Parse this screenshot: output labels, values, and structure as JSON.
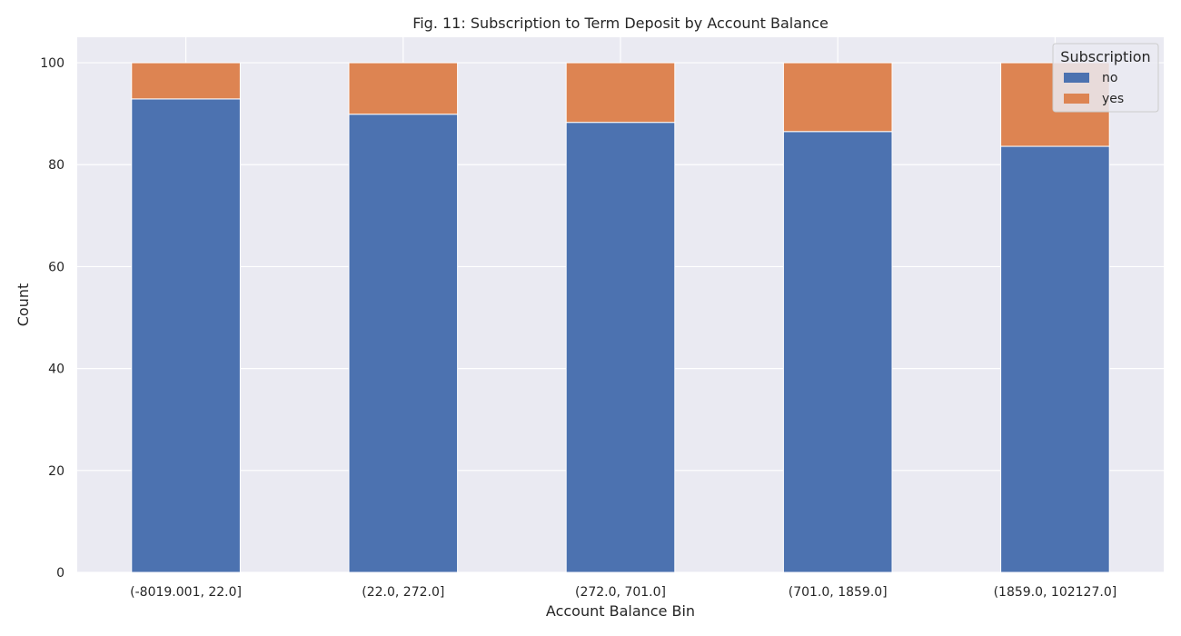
{
  "chart_data": {
    "type": "bar",
    "stacked": true,
    "title": "Fig. 11: Subscription to Term Deposit by Account Balance",
    "xlabel": "Account Balance Bin",
    "ylabel": "Count",
    "categories": [
      "(-8019.001, 22.0]",
      "(22.0, 272.0]",
      "(272.0, 701.0]",
      "(701.0, 1859.0]",
      "(1859.0, 102127.0]"
    ],
    "series": [
      {
        "name": "no",
        "color": "#4c72b0",
        "values": [
          92.9,
          89.9,
          88.3,
          86.5,
          83.6
        ]
      },
      {
        "name": "yes",
        "color": "#dd8452",
        "values": [
          7.1,
          10.1,
          11.7,
          13.5,
          16.4
        ]
      }
    ],
    "ylim": [
      0,
      105
    ],
    "yticks": [
      0,
      20,
      40,
      60,
      80,
      100
    ],
    "grid": true,
    "legend": {
      "title": "Subscription",
      "position": "top-right"
    },
    "plot_background": "#eaeaf2",
    "grid_color": "#ffffff"
  }
}
